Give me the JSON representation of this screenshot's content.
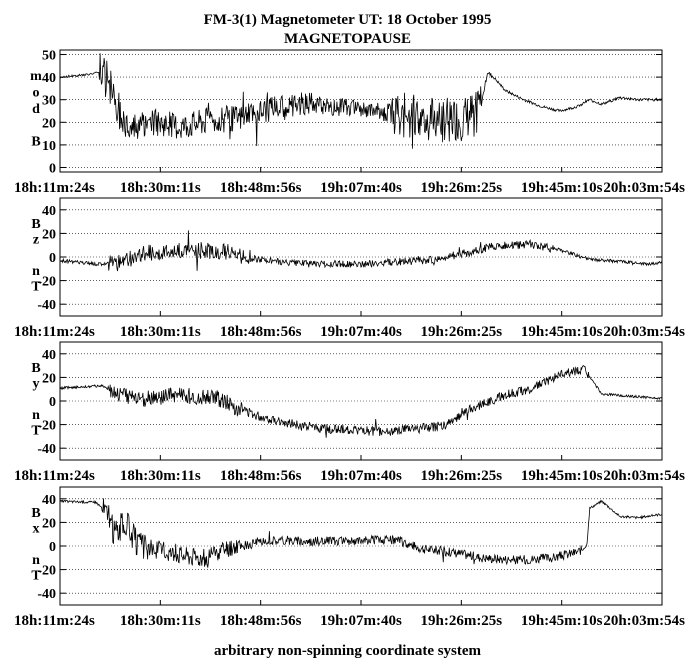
{
  "header": {
    "title": "FM-3(1) Magnetometer  UT: 18 October 1995",
    "subtitle": "MAGNETOPAUSE"
  },
  "footer": {
    "caption": "arbitrary non-spinning coordinate system"
  },
  "chart_data": [
    {
      "type": "line",
      "ylabel": "mod B",
      "ylabel_chars": [
        "m",
        "o",
        "d",
        "",
        "B"
      ],
      "ylim": [
        -2,
        52
      ],
      "yticks": [
        0,
        10,
        20,
        30,
        40,
        50
      ],
      "xtick_labels": [
        "18h:11m:24s",
        "18h:30m:11s",
        "18h:48m:56s",
        "19h:07m:40s",
        "19h:26m:25s",
        "19h:45m:10s",
        "20h:03m:54s"
      ],
      "series": [
        {
          "points": [
            [
              0,
              40
            ],
            [
              0.04,
              41
            ],
            [
              0.065,
              42
            ],
            [
              0.072,
              41
            ],
            [
              0.077,
              39
            ],
            [
              0.083,
              35
            ],
            [
              0.09,
              30
            ],
            [
              0.1,
              25
            ],
            [
              0.11,
              20
            ],
            [
              0.13,
              18
            ],
            [
              0.16,
              20
            ],
            [
              0.2,
              18
            ],
            [
              0.25,
              21
            ],
            [
              0.3,
              22
            ],
            [
              0.35,
              26
            ],
            [
              0.4,
              28
            ],
            [
              0.45,
              27
            ],
            [
              0.5,
              26
            ],
            [
              0.55,
              24
            ],
            [
              0.6,
              22
            ],
            [
              0.64,
              21
            ],
            [
              0.67,
              21
            ],
            [
              0.69,
              24
            ],
            [
              0.7,
              28
            ],
            [
              0.71,
              42
            ],
            [
              0.72,
              40
            ],
            [
              0.74,
              34
            ],
            [
              0.77,
              30
            ],
            [
              0.8,
              27
            ],
            [
              0.83,
              25
            ],
            [
              0.86,
              27
            ],
            [
              0.88,
              30
            ],
            [
              0.9,
              28
            ],
            [
              0.93,
              31
            ],
            [
              0.96,
              30
            ],
            [
              1.0,
              30
            ]
          ],
          "noise": [
            [
              0,
              0.065,
              0.5
            ],
            [
              0.065,
              0.11,
              9
            ],
            [
              0.11,
              0.42,
              6
            ],
            [
              0.42,
              0.55,
              4
            ],
            [
              0.55,
              0.7,
              10
            ],
            [
              0.7,
              0.72,
              1
            ],
            [
              0.72,
              1.0,
              0.6
            ]
          ]
        }
      ],
      "grid": "dotted lines at y = 10, 20, 30, 40"
    },
    {
      "type": "line",
      "ylabel": "Bz nT",
      "ylabel_chars": [
        "B",
        "z",
        "",
        "n",
        "T"
      ],
      "ylim": [
        -50,
        50
      ],
      "yticks": [
        -40,
        -20,
        0,
        20,
        40
      ],
      "xtick_labels": [
        "18h:11m:24s",
        "18h:30m:11s",
        "18h:48m:56s",
        "19h:07m:40s",
        "19h:26m:25s",
        "19h:45m:10s",
        "20h:03m:54s"
      ],
      "series": [
        {
          "points": [
            [
              0,
              -3
            ],
            [
              0.06,
              -6
            ],
            [
              0.1,
              -5
            ],
            [
              0.14,
              3
            ],
            [
              0.2,
              6
            ],
            [
              0.27,
              5
            ],
            [
              0.31,
              0
            ],
            [
              0.36,
              -4
            ],
            [
              0.42,
              -6
            ],
            [
              0.5,
              -6
            ],
            [
              0.56,
              -4
            ],
            [
              0.62,
              -2
            ],
            [
              0.68,
              4
            ],
            [
              0.72,
              9
            ],
            [
              0.78,
              11
            ],
            [
              0.83,
              6
            ],
            [
              0.88,
              -2
            ],
            [
              0.93,
              -4
            ],
            [
              0.97,
              -6
            ],
            [
              1.0,
              -5
            ]
          ],
          "noise": [
            [
              0,
              0.08,
              1.5
            ],
            [
              0.08,
              0.32,
              7
            ],
            [
              0.32,
              0.56,
              3
            ],
            [
              0.56,
              0.82,
              3.5
            ],
            [
              0.82,
              1.0,
              1.5
            ]
          ]
        }
      ],
      "grid": "dotted lines at y = -40, -20, 0, 20, 40"
    },
    {
      "type": "line",
      "ylabel": "By nT",
      "ylabel_chars": [
        "B",
        "y",
        "",
        "n",
        "T"
      ],
      "ylim": [
        -50,
        50
      ],
      "yticks": [
        -40,
        -20,
        0,
        20,
        40
      ],
      "xtick_labels": [
        "18h:11m:24s",
        "18h:30m:11s",
        "18h:48m:56s",
        "19h:07m:40s",
        "19h:26m:25s",
        "19h:45m:10s",
        "20h:03m:54s"
      ],
      "series": [
        {
          "points": [
            [
              0,
              11
            ],
            [
              0.07,
              13
            ],
            [
              0.1,
              5
            ],
            [
              0.14,
              2
            ],
            [
              0.2,
              5
            ],
            [
              0.26,
              3
            ],
            [
              0.29,
              -5
            ],
            [
              0.33,
              -13
            ],
            [
              0.4,
              -21
            ],
            [
              0.46,
              -24
            ],
            [
              0.54,
              -26
            ],
            [
              0.6,
              -23
            ],
            [
              0.64,
              -21
            ],
            [
              0.68,
              -7
            ],
            [
              0.74,
              5
            ],
            [
              0.78,
              10
            ],
            [
              0.83,
              22
            ],
            [
              0.87,
              27
            ],
            [
              0.9,
              6
            ],
            [
              0.95,
              4
            ],
            [
              1.0,
              2
            ]
          ],
          "noise": [
            [
              0,
              0.08,
              1
            ],
            [
              0.08,
              0.31,
              7
            ],
            [
              0.31,
              0.67,
              4
            ],
            [
              0.67,
              0.88,
              4
            ],
            [
              0.88,
              1.0,
              1
            ]
          ]
        }
      ],
      "grid": "dotted lines at y = -40, -20, 0, 20, 40"
    },
    {
      "type": "line",
      "ylabel": "Bx nT",
      "ylabel_chars": [
        "B",
        "x",
        "",
        "n",
        "T"
      ],
      "ylim": [
        -50,
        50
      ],
      "yticks": [
        -40,
        -20,
        0,
        20,
        40
      ],
      "xtick_labels": [
        "18h:11m:24s",
        "18h:30m:11s",
        "18h:48m:56s",
        "19h:07m:40s",
        "19h:26m:25s",
        "19h:45m:10s",
        "20h:03m:54s"
      ],
      "series": [
        {
          "points": [
            [
              0,
              38
            ],
            [
              0.06,
              37
            ],
            [
              0.075,
              30
            ],
            [
              0.09,
              12
            ],
            [
              0.11,
              20
            ],
            [
              0.13,
              0
            ],
            [
              0.18,
              -5
            ],
            [
              0.24,
              -10
            ],
            [
              0.3,
              0
            ],
            [
              0.35,
              5
            ],
            [
              0.42,
              4
            ],
            [
              0.5,
              5
            ],
            [
              0.56,
              5
            ],
            [
              0.6,
              -2
            ],
            [
              0.66,
              -6
            ],
            [
              0.7,
              -10
            ],
            [
              0.76,
              -12
            ],
            [
              0.82,
              -10
            ],
            [
              0.86,
              -5
            ],
            [
              0.875,
              0
            ],
            [
              0.88,
              32
            ],
            [
              0.9,
              38
            ],
            [
              0.93,
              25
            ],
            [
              0.96,
              24
            ],
            [
              1.0,
              27
            ]
          ],
          "noise": [
            [
              0,
              0.07,
              1
            ],
            [
              0.07,
              0.15,
              12
            ],
            [
              0.15,
              0.3,
              8
            ],
            [
              0.3,
              0.87,
              4
            ],
            [
              0.87,
              1.0,
              1
            ]
          ]
        }
      ],
      "grid": "dotted lines at y = -40, -20, 0, 20, 40"
    }
  ]
}
